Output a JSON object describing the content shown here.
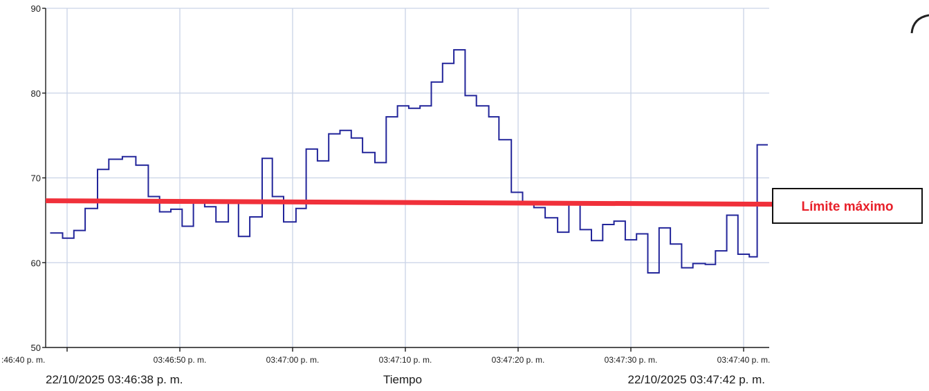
{
  "chart_data": {
    "type": "line",
    "step": true,
    "xlabel": "Tiempo",
    "ylabel": "",
    "x_unit": "seconds",
    "xlim": [
      -1.5,
      62
    ],
    "ylim": [
      50,
      90
    ],
    "y_ticks": [
      50,
      60,
      70,
      80,
      90
    ],
    "x_ticks": [
      {
        "t": 0,
        "label": ":46:40 p. m."
      },
      {
        "t": 10,
        "label": "03:46:50 p. m."
      },
      {
        "t": 20,
        "label": "03:47:00 p. m."
      },
      {
        "t": 30,
        "label": "03:47:10 p. m."
      },
      {
        "t": 40,
        "label": "03:47:20 p. m."
      },
      {
        "t": 50,
        "label": "03:47:30 p. m."
      },
      {
        "t": 60,
        "label": "03:47:40 p. m."
      }
    ],
    "range_start_label": "22/10/2025 03:46:38 p. m.",
    "range_end_label": "22/10/2025 03:47:42 p. m.",
    "grid": true,
    "series": [
      {
        "color": "#22259a",
        "x": [
          -1.5,
          -0.4,
          0.6,
          1.6,
          2.7,
          3.7,
          4.9,
          6.1,
          7.2,
          8.2,
          9.2,
          10.2,
          11.2,
          12.2,
          13.2,
          14.3,
          15.2,
          16.2,
          17.3,
          18.2,
          19.2,
          20.3,
          21.2,
          22.2,
          23.2,
          24.2,
          25.2,
          26.2,
          27.3,
          28.3,
          29.3,
          30.3,
          31.3,
          32.3,
          33.3,
          34.3,
          35.3,
          36.3,
          37.4,
          38.3,
          39.4,
          40.4,
          41.4,
          42.4,
          43.5,
          44.5,
          45.5,
          46.5,
          47.5,
          48.5,
          49.5,
          50.5,
          51.5,
          52.5,
          53.5,
          54.5,
          55.5,
          56.6,
          57.5,
          58.5,
          59.5,
          60.5,
          61.2
        ],
        "y": [
          63.5,
          62.9,
          63.8,
          66.4,
          71.0,
          72.2,
          72.5,
          71.5,
          67.8,
          66.0,
          66.3,
          64.3,
          67.1,
          66.6,
          64.8,
          67.1,
          63.1,
          65.4,
          72.3,
          67.8,
          64.8,
          66.4,
          73.4,
          72.0,
          75.2,
          75.6,
          74.7,
          73.0,
          71.8,
          77.2,
          78.5,
          78.2,
          78.5,
          81.3,
          83.5,
          85.1,
          79.7,
          78.5,
          77.2,
          74.5,
          68.3,
          67.0,
          66.5,
          65.3,
          63.6,
          67.1,
          63.9,
          62.6,
          64.5,
          64.9,
          62.7,
          63.4,
          58.8,
          64.1,
          62.2,
          59.4,
          59.9,
          59.8,
          61.4,
          65.6,
          61.0,
          60.7,
          73.9
        ]
      }
    ],
    "annotations": [
      {
        "type": "hline",
        "y": 67.3,
        "color": "#f0303a",
        "label": "Límite máximo"
      }
    ]
  }
}
